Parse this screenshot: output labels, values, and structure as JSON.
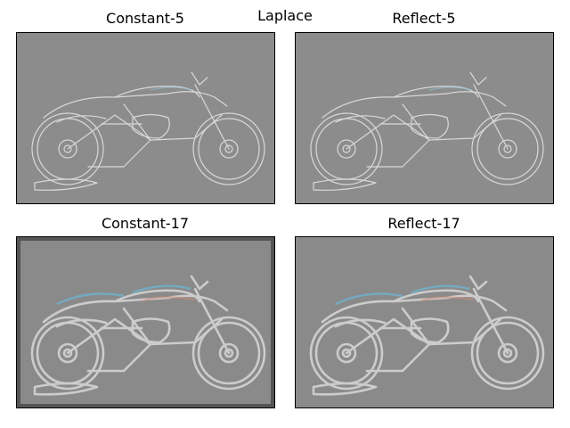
{
  "figure": {
    "suptitle": "Laplace"
  },
  "panels": [
    {
      "title": "Constant-5",
      "kind": "constant",
      "kernel": 5,
      "background": "#8c8c8c",
      "stroke": "#e6e6e6",
      "accent": "#8fbfd0",
      "frame": false
    },
    {
      "title": "Reflect-5",
      "kind": "reflect",
      "kernel": 5,
      "background": "#8c8c8c",
      "stroke": "#e6e6e6",
      "accent": "#8fbfd0",
      "frame": false
    },
    {
      "title": "Constant-17",
      "kind": "constant",
      "kernel": 17,
      "background": "#8a8a8a",
      "stroke": "#d8d8d8",
      "accent": "#6fb0cc",
      "frame": true
    },
    {
      "title": "Reflect-17",
      "kind": "reflect",
      "kernel": 17,
      "background": "#8a8a8a",
      "stroke": "#d8d8d8",
      "accent": "#6fb0cc",
      "frame": false
    }
  ],
  "image_subject": "motorcycle-edge-map"
}
